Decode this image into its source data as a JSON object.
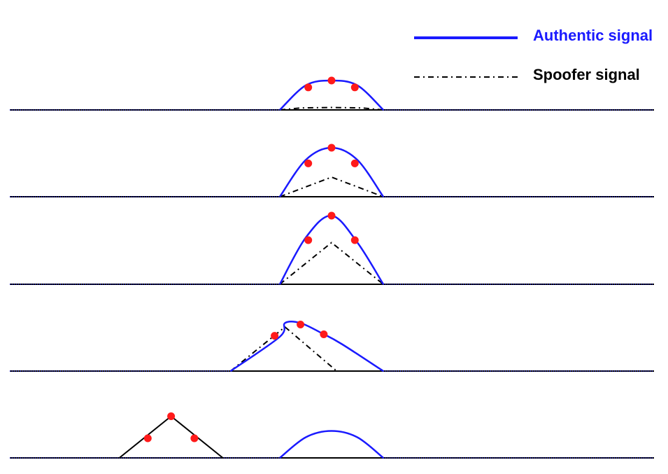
{
  "legend": {
    "authentic": {
      "label": "Authentic signal",
      "color": "#1a1aff"
    },
    "spoofer": {
      "label": "Spoofer signal",
      "color": "#000000"
    }
  },
  "marker_color": "#ff1a1a",
  "panels": [
    {
      "authentic": [
        [
          -1.0,
          0.0
        ],
        [
          -0.5,
          0.5
        ],
        [
          0.0,
          0.6
        ],
        [
          0.5,
          0.5
        ],
        [
          1.0,
          0.0
        ]
      ],
      "spoofer": [
        [
          -1.0,
          0.0
        ],
        [
          -0.6,
          0.04
        ],
        [
          0.0,
          0.05
        ],
        [
          0.6,
          0.04
        ],
        [
          1.0,
          0.0
        ]
      ],
      "markers": [
        [
          -0.45,
          0.46
        ],
        [
          0.0,
          0.6
        ],
        [
          0.45,
          0.46
        ]
      ]
    },
    {
      "authentic": [
        [
          -1.0,
          0.0
        ],
        [
          -0.5,
          0.75
        ],
        [
          0.0,
          1.0
        ],
        [
          0.5,
          0.75
        ],
        [
          1.0,
          0.0
        ]
      ],
      "spoofer": [
        [
          -1.0,
          0.0
        ],
        [
          0.0,
          0.4
        ],
        [
          1.0,
          0.0
        ]
      ],
      "markers": [
        [
          -0.45,
          0.68
        ],
        [
          0.0,
          1.0
        ],
        [
          0.45,
          0.68
        ]
      ]
    },
    {
      "authentic": [
        [
          -1.0,
          0.0
        ],
        [
          -0.5,
          0.95
        ],
        [
          0.0,
          1.4
        ],
        [
          0.5,
          0.85
        ],
        [
          1.0,
          0.0
        ]
      ],
      "spoofer": [
        [
          -1.0,
          0.0
        ],
        [
          0.0,
          0.85
        ],
        [
          1.0,
          0.0
        ]
      ],
      "markers": [
        [
          -0.45,
          0.9
        ],
        [
          0.0,
          1.4
        ],
        [
          0.45,
          0.9
        ]
      ]
    },
    {
      "authentic": [
        [
          -1.95,
          0.0
        ],
        [
          -1.0,
          0.7
        ],
        [
          -0.9,
          0.98
        ],
        [
          -0.6,
          0.98
        ],
        [
          -0.2,
          0.78
        ],
        [
          0.2,
          0.55
        ],
        [
          1.0,
          0.0
        ]
      ],
      "spoofer": [
        [
          -1.95,
          0.0
        ],
        [
          -0.9,
          0.9
        ],
        [
          0.1,
          0.0
        ],
        [
          1.0,
          0.0
        ]
      ],
      "markers": [
        [
          -1.1,
          0.72
        ],
        [
          -0.6,
          0.95
        ],
        [
          -0.15,
          0.75
        ]
      ]
    },
    {
      "authentic": [
        [
          -1.0,
          0.0
        ],
        [
          -0.5,
          0.42
        ],
        [
          0.0,
          0.55
        ],
        [
          0.5,
          0.42
        ],
        [
          1.0,
          0.0
        ]
      ],
      "spoofer": [
        [
          -1.0,
          0.0
        ],
        [
          1.0,
          0.0
        ]
      ],
      "spoofer_peak": [
        [
          -4.1,
          0.0
        ],
        [
          -3.1,
          0.85
        ],
        [
          -2.1,
          0.0
        ]
      ],
      "markers": [
        [
          -3.55,
          0.4
        ],
        [
          -3.1,
          0.85
        ],
        [
          -2.65,
          0.4
        ]
      ]
    }
  ]
}
